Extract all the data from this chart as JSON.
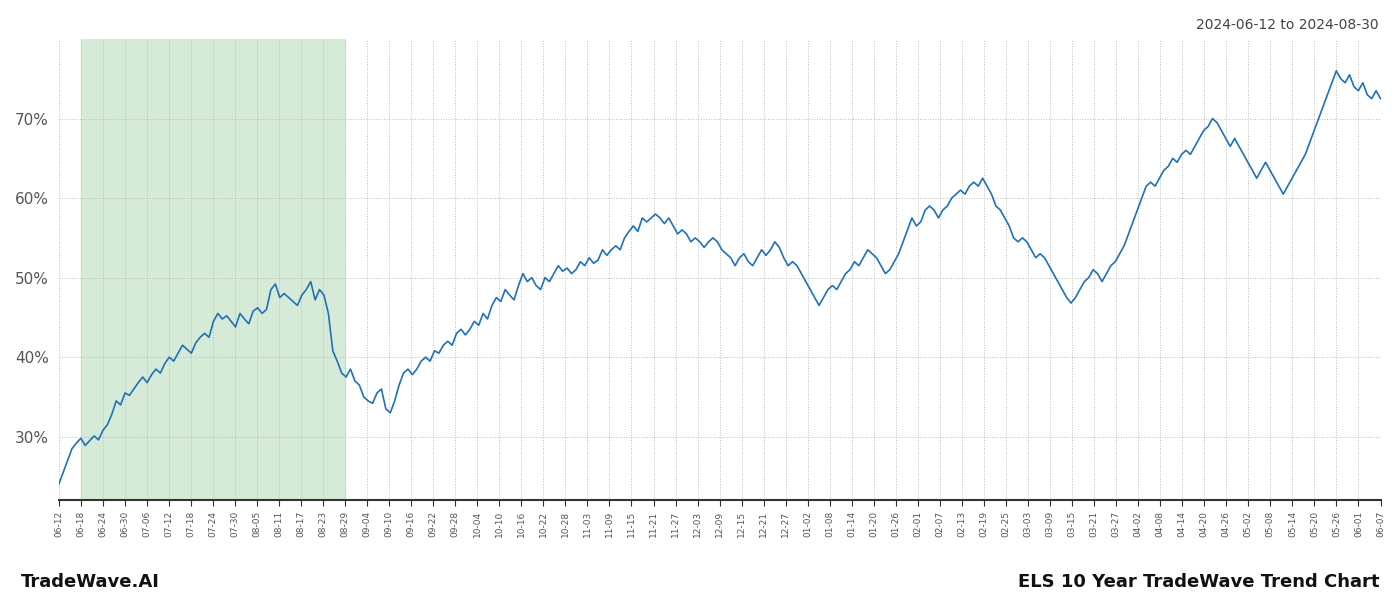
{
  "title_right": "2024-06-12 to 2024-08-30",
  "footer_left": "TradeWave.AI",
  "footer_right": "ELS 10 Year TradeWave Trend Chart",
  "y_ticks": [
    30,
    40,
    50,
    60,
    70
  ],
  "y_labels": [
    "30%",
    "40%",
    "50%",
    "60%",
    "70%"
  ],
  "ylim": [
    22,
    80
  ],
  "highlight_start_label": "06-18",
  "highlight_end_label": "08-29",
  "line_color": "#2171b5",
  "highlight_color": "#d6ead8",
  "background_color": "#ffffff",
  "grid_color": "#bbbbbb",
  "x_labels": [
    "06-12",
    "06-18",
    "06-24",
    "06-30",
    "07-06",
    "07-12",
    "07-18",
    "07-24",
    "07-30",
    "08-05",
    "08-11",
    "08-17",
    "08-23",
    "08-29",
    "09-04",
    "09-10",
    "09-16",
    "09-22",
    "09-28",
    "10-04",
    "10-10",
    "10-16",
    "10-22",
    "10-28",
    "11-03",
    "11-09",
    "11-15",
    "11-21",
    "11-27",
    "12-03",
    "12-09",
    "12-15",
    "12-21",
    "12-27",
    "01-02",
    "01-08",
    "01-14",
    "01-20",
    "01-26",
    "02-01",
    "02-07",
    "02-13",
    "02-19",
    "02-25",
    "03-03",
    "03-09",
    "03-15",
    "03-21",
    "03-27",
    "04-02",
    "04-08",
    "04-14",
    "04-20",
    "04-26",
    "05-02",
    "05-08",
    "05-14",
    "05-20",
    "05-26",
    "06-01",
    "06-07"
  ],
  "values": [
    24.0,
    25.5,
    27.0,
    28.5,
    29.2,
    29.8,
    28.9,
    29.5,
    30.1,
    29.6,
    30.8,
    31.5,
    32.8,
    34.5,
    34.0,
    35.5,
    35.2,
    36.0,
    36.8,
    37.5,
    36.8,
    37.8,
    38.5,
    38.0,
    39.2,
    40.0,
    39.5,
    40.5,
    41.5,
    41.0,
    40.5,
    41.8,
    42.5,
    43.0,
    42.5,
    44.5,
    45.5,
    44.8,
    45.2,
    44.5,
    43.8,
    45.5,
    44.8,
    44.2,
    45.8,
    46.2,
    45.5,
    46.0,
    48.5,
    49.2,
    47.5,
    48.0,
    47.5,
    47.0,
    46.5,
    47.8,
    48.5,
    49.5,
    47.2,
    48.5,
    47.8,
    45.5,
    40.8,
    39.5,
    38.0,
    37.5,
    38.5,
    37.0,
    36.5,
    35.0,
    34.5,
    34.2,
    35.5,
    36.0,
    33.5,
    33.0,
    34.5,
    36.5,
    38.0,
    38.5,
    37.8,
    38.5,
    39.5,
    40.0,
    39.5,
    40.8,
    40.5,
    41.5,
    42.0,
    41.5,
    43.0,
    43.5,
    42.8,
    43.5,
    44.5,
    44.0,
    45.5,
    44.8,
    46.5,
    47.5,
    47.0,
    48.5,
    47.8,
    47.2,
    49.0,
    50.5,
    49.5,
    50.0,
    49.0,
    48.5,
    50.0,
    49.5,
    50.5,
    51.5,
    50.8,
    51.2,
    50.5,
    51.0,
    52.0,
    51.5,
    52.5,
    51.8,
    52.2,
    53.5,
    52.8,
    53.5,
    54.0,
    53.5,
    55.0,
    55.8,
    56.5,
    55.8,
    57.5,
    57.0,
    57.5,
    58.0,
    57.5,
    56.8,
    57.5,
    56.5,
    55.5,
    56.0,
    55.5,
    54.5,
    55.0,
    54.5,
    53.8,
    54.5,
    55.0,
    54.5,
    53.5,
    53.0,
    52.5,
    51.5,
    52.5,
    53.0,
    52.0,
    51.5,
    52.5,
    53.5,
    52.8,
    53.5,
    54.5,
    53.8,
    52.5,
    51.5,
    52.0,
    51.5,
    50.5,
    49.5,
    48.5,
    47.5,
    46.5,
    47.5,
    48.5,
    49.0,
    48.5,
    49.5,
    50.5,
    51.0,
    52.0,
    51.5,
    52.5,
    53.5,
    53.0,
    52.5,
    51.5,
    50.5,
    51.0,
    52.0,
    53.0,
    54.5,
    56.0,
    57.5,
    56.5,
    57.0,
    58.5,
    59.0,
    58.5,
    57.5,
    58.5,
    59.0,
    60.0,
    60.5,
    61.0,
    60.5,
    61.5,
    62.0,
    61.5,
    62.5,
    61.5,
    60.5,
    59.0,
    58.5,
    57.5,
    56.5,
    55.0,
    54.5,
    55.0,
    54.5,
    53.5,
    52.5,
    53.0,
    52.5,
    51.5,
    50.5,
    49.5,
    48.5,
    47.5,
    46.8,
    47.5,
    48.5,
    49.5,
    50.0,
    51.0,
    50.5,
    49.5,
    50.5,
    51.5,
    52.0,
    53.0,
    54.0,
    55.5,
    57.0,
    58.5,
    60.0,
    61.5,
    62.0,
    61.5,
    62.5,
    63.5,
    64.0,
    65.0,
    64.5,
    65.5,
    66.0,
    65.5,
    66.5,
    67.5,
    68.5,
    69.0,
    70.0,
    69.5,
    68.5,
    67.5,
    66.5,
    67.5,
    66.5,
    65.5,
    64.5,
    63.5,
    62.5,
    63.5,
    64.5,
    63.5,
    62.5,
    61.5,
    60.5,
    61.5,
    62.5,
    63.5,
    64.5,
    65.5,
    67.0,
    68.5,
    70.0,
    71.5,
    73.0,
    74.5,
    76.0,
    75.0,
    74.5,
    75.5,
    74.0,
    73.5,
    74.5,
    73.0,
    72.5,
    73.5,
    72.5
  ]
}
